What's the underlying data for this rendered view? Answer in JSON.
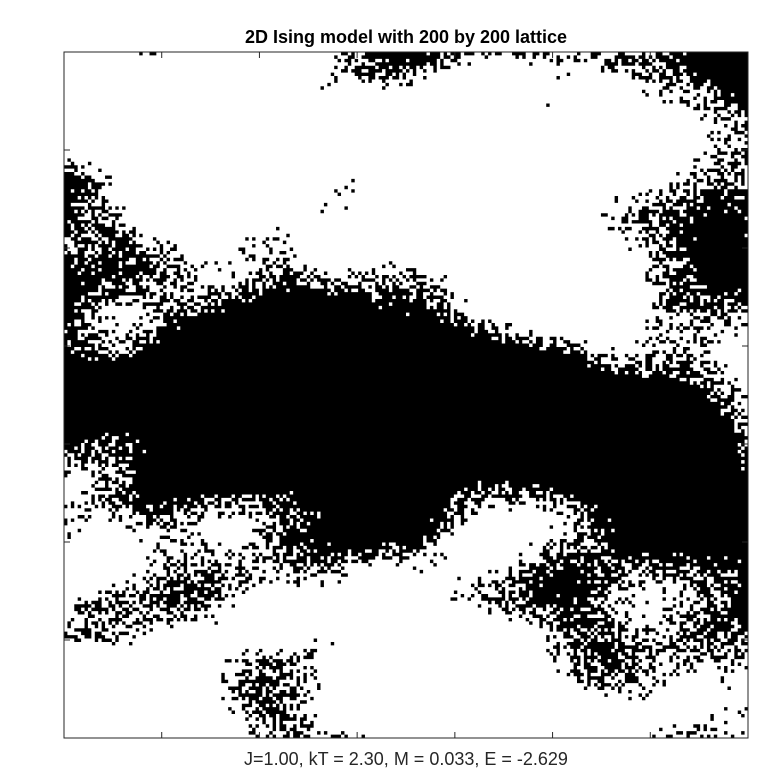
{
  "chart_data": {
    "type": "heatmap",
    "title": "2D Ising model with 200 by 200 lattice",
    "xlabel": "J=1.00, kT = 2.30, M = 0.033, E = -2.629",
    "ylabel": "",
    "lattice_rows": 200,
    "lattice_cols": 200,
    "J": 1.0,
    "kT": 2.3,
    "M": 0.033,
    "E": -2.629,
    "spin_colors": {
      "up": "#000000",
      "down": "#ffffff"
    },
    "axis_color": "#262626",
    "grid": false,
    "ticks_visible": false
  }
}
